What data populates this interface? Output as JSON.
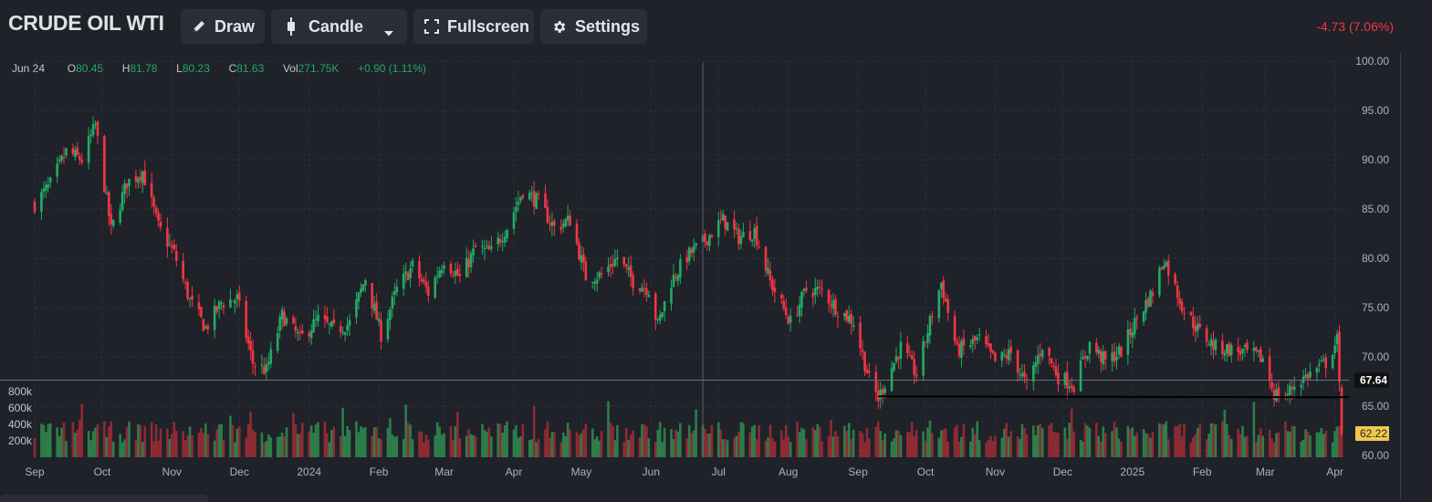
{
  "toolbar": {
    "symbol": "CRUDE OIL WTI",
    "draw_label": "Draw",
    "candle_label": "Candle",
    "fullscreen_label": "Fullscreen",
    "settings_label": "Settings",
    "change_text": "-4.73 (7.06%)"
  },
  "ohlc": {
    "date": "Jun 24",
    "o_label": "O",
    "o": "80.45",
    "h_label": "H",
    "h": "81.78",
    "l_label": "L",
    "l": "80.23",
    "c_label": "C",
    "c": "81.63",
    "vol_label": "Vol",
    "vol": "271.75K",
    "change": "+0.90 (1.11%)"
  },
  "colors": {
    "background": "#1f2228",
    "up": "#22ab66",
    "down": "#f23645",
    "volume_up": "#2e7d4a",
    "volume_down": "#8e2b34",
    "grid": "#2e323c",
    "axis_text": "#aeb2bb",
    "last_price_badge": "#f2c94c",
    "crosshair_badge": "#111111"
  },
  "icons": {
    "draw": "pencil-icon",
    "candle": "candlestick-icon",
    "fullscreen": "fullscreen-icon",
    "settings": "gear-icon",
    "dropdown": "chevron-down-icon"
  },
  "chart_data": {
    "type": "candlestick",
    "title": "CRUDE OIL WTI",
    "price_axis": {
      "ylim": [
        60,
        100
      ],
      "ticks": [
        "100.00",
        "95.00",
        "90.00",
        "85.00",
        "80.00",
        "75.00",
        "70.00",
        "65.00",
        "60.00"
      ],
      "crosshair_price": "67.64",
      "last_price": "62.22",
      "support_level": 65.9
    },
    "volume_axis": {
      "ticks": [
        "800k",
        "600k",
        "400k",
        "200k"
      ],
      "ylim": [
        0,
        900000
      ]
    },
    "time_axis": {
      "ticks": [
        "Sep",
        "Oct",
        "Nov",
        "Dec",
        "2024",
        "Feb",
        "Mar",
        "Apr",
        "May",
        "Jun",
        "Jul",
        "Aug",
        "Sep",
        "Oct",
        "Nov",
        "Dec",
        "2025",
        "Feb",
        "Mar",
        "Apr"
      ],
      "crosshair_date": "Jun 24"
    },
    "grid": true,
    "close_path": [
      [
        "2023-09-01",
        85.5
      ],
      [
        "2023-09-08",
        87.5
      ],
      [
        "2023-09-15",
        90.8
      ],
      [
        "2023-09-22",
        90.0
      ],
      [
        "2023-09-28",
        93.5
      ],
      [
        "2023-10-05",
        82.8
      ],
      [
        "2023-10-12",
        87.7
      ],
      [
        "2023-10-19",
        88.8
      ],
      [
        "2023-10-26",
        83.2
      ],
      [
        "2023-11-02",
        80.5
      ],
      [
        "2023-11-09",
        75.7
      ],
      [
        "2023-11-16",
        72.9
      ],
      [
        "2023-11-23",
        75.5
      ],
      [
        "2023-11-30",
        75.9
      ],
      [
        "2023-12-07",
        69.4
      ],
      [
        "2023-12-13",
        68.6
      ],
      [
        "2023-12-20",
        74.2
      ],
      [
        "2023-12-28",
        71.8
      ],
      [
        "2024-01-05",
        73.8
      ],
      [
        "2024-01-12",
        72.7
      ],
      [
        "2024-01-19",
        73.4
      ],
      [
        "2024-01-26",
        78.0
      ],
      [
        "2024-02-02",
        72.3
      ],
      [
        "2024-02-09",
        76.8
      ],
      [
        "2024-02-16",
        79.2
      ],
      [
        "2024-02-23",
        76.5
      ],
      [
        "2024-03-01",
        79.9
      ],
      [
        "2024-03-08",
        78.0
      ],
      [
        "2024-03-15",
        81.0
      ],
      [
        "2024-03-22",
        80.6
      ],
      [
        "2024-03-29",
        83.2
      ],
      [
        "2024-04-05",
        86.9
      ],
      [
        "2024-04-12",
        85.7
      ],
      [
        "2024-04-19",
        83.1
      ],
      [
        "2024-04-26",
        83.9
      ],
      [
        "2024-05-03",
        78.1
      ],
      [
        "2024-05-10",
        78.3
      ],
      [
        "2024-05-17",
        80.1
      ],
      [
        "2024-05-24",
        77.7
      ],
      [
        "2024-05-31",
        76.9
      ],
      [
        "2024-06-04",
        73.2
      ],
      [
        "2024-06-10",
        77.7
      ],
      [
        "2024-06-17",
        80.2
      ],
      [
        "2024-06-24",
        81.6
      ],
      [
        "2024-07-03",
        83.9
      ],
      [
        "2024-07-10",
        82.1
      ],
      [
        "2024-07-17",
        82.8
      ],
      [
        "2024-07-24",
        77.6
      ],
      [
        "2024-08-02",
        73.5
      ],
      [
        "2024-08-09",
        76.8
      ],
      [
        "2024-08-16",
        76.7
      ],
      [
        "2024-08-23",
        74.8
      ],
      [
        "2024-08-30",
        73.6
      ],
      [
        "2024-09-06",
        67.7
      ],
      [
        "2024-09-10",
        65.8
      ],
      [
        "2024-09-20",
        71.0
      ],
      [
        "2024-09-27",
        68.2
      ],
      [
        "2024-10-04",
        74.4
      ],
      [
        "2024-10-08",
        77.5
      ],
      [
        "2024-10-15",
        70.6
      ],
      [
        "2024-10-25",
        71.8
      ],
      [
        "2024-11-01",
        69.5
      ],
      [
        "2024-11-08",
        70.4
      ],
      [
        "2024-11-15",
        67.0
      ],
      [
        "2024-11-22",
        71.2
      ],
      [
        "2024-11-29",
        68.0
      ],
      [
        "2024-12-06",
        67.2
      ],
      [
        "2024-12-13",
        71.3
      ],
      [
        "2024-12-20",
        69.5
      ],
      [
        "2024-12-27",
        70.6
      ],
      [
        "2025-01-03",
        73.9
      ],
      [
        "2025-01-10",
        76.6
      ],
      [
        "2025-01-15",
        80.0
      ],
      [
        "2025-01-24",
        74.7
      ],
      [
        "2025-01-31",
        72.5
      ],
      [
        "2025-02-07",
        71.0
      ],
      [
        "2025-02-14",
        70.7
      ],
      [
        "2025-02-21",
        70.4
      ],
      [
        "2025-02-28",
        69.8
      ],
      [
        "2025-03-05",
        66.3
      ],
      [
        "2025-03-10",
        66.0
      ],
      [
        "2025-03-14",
        67.2
      ],
      [
        "2025-03-21",
        68.3
      ],
      [
        "2025-03-28",
        69.4
      ],
      [
        "2025-04-02",
        71.7
      ],
      [
        "2025-04-03",
        66.9
      ],
      [
        "2025-04-04",
        62.2
      ]
    ]
  }
}
